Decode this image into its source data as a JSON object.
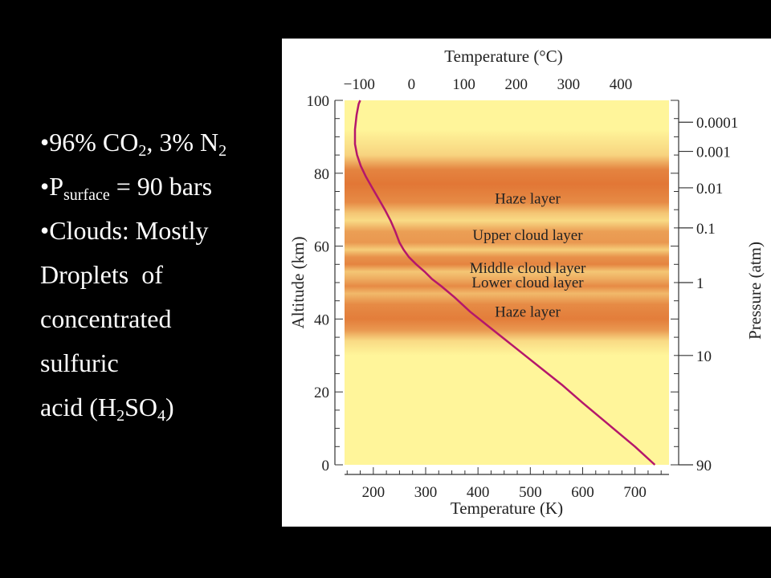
{
  "bullets": {
    "composition": {
      "pre": "•96% CO",
      "sub1": "2",
      "mid": ", 3% N",
      "sub2": "2"
    },
    "pressure": {
      "pre": "•P",
      "sub": "surface",
      "post": " = 90 bars"
    },
    "clouds": "•Clouds: Mostly",
    "droplets": "Droplets  of",
    "concentrated": "concentrated",
    "sulfuric": "sulfuric",
    "acid": {
      "pre": "acid (H",
      "sub1": "2",
      "mid": "SO",
      "sub2": "4",
      "post": ")"
    }
  },
  "chart_data": {
    "type": "line",
    "title": "",
    "top_axis_label": "Temperature (°C)",
    "top_axis_ticks": [
      "−100",
      "0",
      "100",
      "200",
      "300",
      "400"
    ],
    "top_axis_values": [
      -100,
      0,
      100,
      200,
      300,
      400
    ],
    "xlabel": "Temperature (K)",
    "x_ticks": [
      200,
      300,
      400,
      500,
      600,
      700
    ],
    "xlim": [
      145,
      765
    ],
    "ylabel": "Altitude (km)",
    "y_ticks": [
      0,
      20,
      40,
      60,
      80,
      100
    ],
    "ylim": [
      0,
      100
    ],
    "right_axis_label": "Pressure (atm)",
    "right_axis_ticks": [
      {
        "label": "0.0001",
        "altitude": 94
      },
      {
        "label": "0.001",
        "altitude": 86
      },
      {
        "label": "0.01",
        "altitude": 76
      },
      {
        "label": "0.1",
        "altitude": 65
      },
      {
        "label": "1",
        "altitude": 50
      },
      {
        "label": "10",
        "altitude": 30
      },
      {
        "label": "90",
        "altitude": 0
      }
    ],
    "bands": [
      {
        "label": "Haze layer",
        "altitude": 73
      },
      {
        "label": "Upper cloud layer",
        "altitude": 63
      },
      {
        "label": "Middle cloud layer",
        "altitude": 54
      },
      {
        "label": "Lower cloud layer",
        "altitude": 50
      },
      {
        "label": "Haze layer",
        "altitude": 42
      }
    ],
    "series": [
      {
        "x": [
          738,
          700,
          650,
          600,
          560,
          525,
          490,
          455,
          420,
          385,
          355,
          330,
          312,
          298,
          282,
          268,
          258,
          250,
          242,
          233,
          222,
          210,
          198,
          186,
          176,
          169,
          165,
          165,
          168,
          172,
          175
        ],
        "y": [
          0,
          5,
          11,
          17,
          22,
          26,
          30,
          34,
          38,
          42,
          46,
          49,
          51,
          53,
          55,
          57,
          59,
          61,
          64,
          67,
          70,
          73,
          76,
          79,
          82,
          85,
          88,
          92,
          96,
          99,
          100
        ]
      }
    ],
    "colors": {
      "curve": "#b5176b",
      "background": "#fff59a",
      "band": "#e07030",
      "frame": "#333333"
    },
    "grid": false
  }
}
